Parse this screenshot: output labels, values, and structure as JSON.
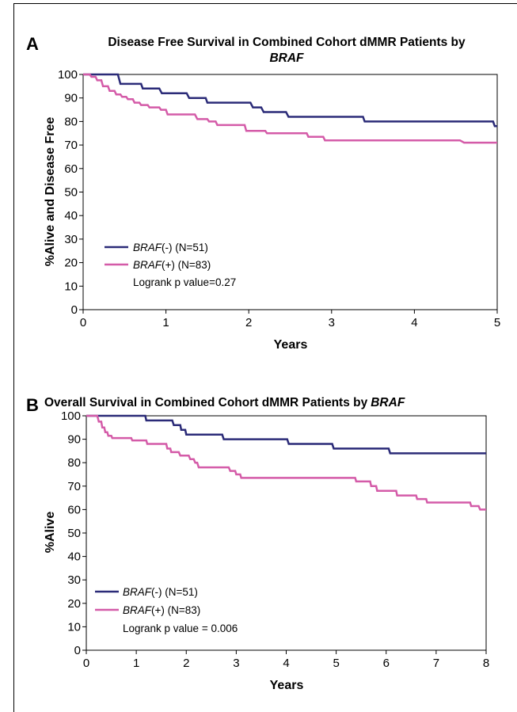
{
  "chart_data": [
    {
      "panel": "A",
      "type": "line",
      "step": true,
      "title_parts": [
        {
          "text": "Disease Free Survival in Combined Cohort dMMR Patients by",
          "italic": false
        },
        {
          "text": "BRAF",
          "italic": true
        }
      ],
      "xlabel": "Years",
      "ylabel": "%Alive and Disease Free",
      "xlim": [
        0,
        5
      ],
      "ylim": [
        0,
        100
      ],
      "xticks": [
        "0",
        "1",
        "2",
        "3",
        "4",
        "5"
      ],
      "yticks": [
        "0",
        "10",
        "20",
        "30",
        "40",
        "50",
        "60",
        "70",
        "80",
        "90",
        "100"
      ],
      "grid": false,
      "legend_position": "bottom-left",
      "annotation": "Logrank p value=0.27",
      "series": [
        {
          "name_italic": "BRAF",
          "name_rest": "(-) (N=51)",
          "color": "#2b2b78",
          "points": [
            [
              0,
              100
            ],
            [
              0.42,
              100
            ],
            [
              0.45,
              96
            ],
            [
              0.7,
              96
            ],
            [
              0.72,
              94
            ],
            [
              0.92,
              94
            ],
            [
              0.95,
              92
            ],
            [
              1.25,
              92
            ],
            [
              1.28,
              90
            ],
            [
              1.48,
              90
            ],
            [
              1.5,
              88
            ],
            [
              2.02,
              88
            ],
            [
              2.05,
              86
            ],
            [
              2.15,
              86
            ],
            [
              2.18,
              84
            ],
            [
              2.45,
              84
            ],
            [
              2.48,
              82
            ],
            [
              3.38,
              82
            ],
            [
              3.4,
              80
            ],
            [
              4.95,
              80
            ],
            [
              4.97,
              78
            ],
            [
              5,
              78
            ]
          ]
        },
        {
          "name_italic": "BRAF",
          "name_rest": "(+) (N=83)",
          "color": "#d45ba8",
          "points": [
            [
              0,
              100
            ],
            [
              0.08,
              100
            ],
            [
              0.1,
              99
            ],
            [
              0.15,
              99
            ],
            [
              0.17,
              97.5
            ],
            [
              0.22,
              97.5
            ],
            [
              0.24,
              95
            ],
            [
              0.3,
              95
            ],
            [
              0.32,
              93
            ],
            [
              0.38,
              93
            ],
            [
              0.4,
              91.5
            ],
            [
              0.45,
              91.5
            ],
            [
              0.47,
              90.5
            ],
            [
              0.52,
              90.5
            ],
            [
              0.54,
              89.5
            ],
            [
              0.6,
              89.5
            ],
            [
              0.62,
              88
            ],
            [
              0.68,
              88
            ],
            [
              0.7,
              87
            ],
            [
              0.78,
              87
            ],
            [
              0.8,
              86
            ],
            [
              0.92,
              86
            ],
            [
              0.94,
              85
            ],
            [
              1.0,
              85
            ],
            [
              1.02,
              83
            ],
            [
              1.35,
              83
            ],
            [
              1.38,
              81
            ],
            [
              1.5,
              81
            ],
            [
              1.52,
              80
            ],
            [
              1.6,
              80
            ],
            [
              1.62,
              78.5
            ],
            [
              1.95,
              78.5
            ],
            [
              1.97,
              76
            ],
            [
              2.2,
              76
            ],
            [
              2.22,
              75
            ],
            [
              2.7,
              75
            ],
            [
              2.72,
              73.5
            ],
            [
              2.9,
              73.5
            ],
            [
              2.92,
              72
            ],
            [
              4.55,
              72
            ],
            [
              4.6,
              71
            ],
            [
              5,
              71
            ]
          ]
        }
      ]
    },
    {
      "panel": "B",
      "type": "line",
      "step": true,
      "title_parts": [
        {
          "text": "Overall Survival in Combined Cohort dMMR Patients by",
          "italic": false
        },
        {
          "text": "BRAF",
          "italic": true
        }
      ],
      "xlabel": "Years",
      "ylabel": "%Alive",
      "xlim": [
        0,
        8
      ],
      "ylim": [
        0,
        100
      ],
      "xticks": [
        "0",
        "1",
        "2",
        "3",
        "4",
        "5",
        "6",
        "7",
        "8"
      ],
      "yticks": [
        "0",
        "10",
        "20",
        "30",
        "40",
        "50",
        "60",
        "70",
        "80",
        "90",
        "100"
      ],
      "grid": false,
      "legend_position": "bottom-left",
      "annotation": "Logrank p value = 0.006",
      "series": [
        {
          "name_italic": "BRAF",
          "name_rest": "(-) (N=51)",
          "color": "#2b2b78",
          "points": [
            [
              0,
              100
            ],
            [
              1.18,
              100
            ],
            [
              1.2,
              98
            ],
            [
              1.72,
              98
            ],
            [
              1.75,
              96
            ],
            [
              1.88,
              96
            ],
            [
              1.9,
              94
            ],
            [
              1.98,
              94
            ],
            [
              2.0,
              92
            ],
            [
              2.72,
              92
            ],
            [
              2.75,
              90
            ],
            [
              4.02,
              90
            ],
            [
              4.05,
              88
            ],
            [
              4.92,
              88
            ],
            [
              4.95,
              86
            ],
            [
              6.05,
              86
            ],
            [
              6.08,
              84
            ],
            [
              8,
              84
            ]
          ]
        },
        {
          "name_italic": "BRAF",
          "name_rest": "(+) (N=83)",
          "color": "#d45ba8",
          "points": [
            [
              0,
              100
            ],
            [
              0.22,
              100
            ],
            [
              0.25,
              97.5
            ],
            [
              0.3,
              97.5
            ],
            [
              0.32,
              95
            ],
            [
              0.36,
              95
            ],
            [
              0.38,
              93
            ],
            [
              0.42,
              93
            ],
            [
              0.44,
              91.5
            ],
            [
              0.5,
              91.5
            ],
            [
              0.52,
              90.5
            ],
            [
              0.9,
              90.5
            ],
            [
              0.92,
              89.5
            ],
            [
              1.2,
              89.5
            ],
            [
              1.22,
              88
            ],
            [
              1.6,
              88
            ],
            [
              1.62,
              86
            ],
            [
              1.68,
              86
            ],
            [
              1.7,
              84.5
            ],
            [
              1.85,
              84.5
            ],
            [
              1.88,
              83
            ],
            [
              2.05,
              83
            ],
            [
              2.08,
              81.5
            ],
            [
              2.15,
              81.5
            ],
            [
              2.18,
              80
            ],
            [
              2.22,
              80
            ],
            [
              2.25,
              78
            ],
            [
              2.85,
              78
            ],
            [
              2.88,
              76.5
            ],
            [
              2.98,
              76.5
            ],
            [
              3.0,
              75
            ],
            [
              3.08,
              75
            ],
            [
              3.1,
              73.5
            ],
            [
              5.38,
              73.5
            ],
            [
              5.4,
              72
            ],
            [
              5.68,
              72
            ],
            [
              5.7,
              70
            ],
            [
              5.8,
              70
            ],
            [
              5.82,
              68
            ],
            [
              6.2,
              68
            ],
            [
              6.22,
              66
            ],
            [
              6.6,
              66
            ],
            [
              6.62,
              64.5
            ],
            [
              6.8,
              64.5
            ],
            [
              6.82,
              63
            ],
            [
              7.68,
              63
            ],
            [
              7.7,
              61.5
            ],
            [
              7.85,
              61.5
            ],
            [
              7.88,
              60
            ],
            [
              8,
              60
            ]
          ]
        }
      ]
    }
  ]
}
